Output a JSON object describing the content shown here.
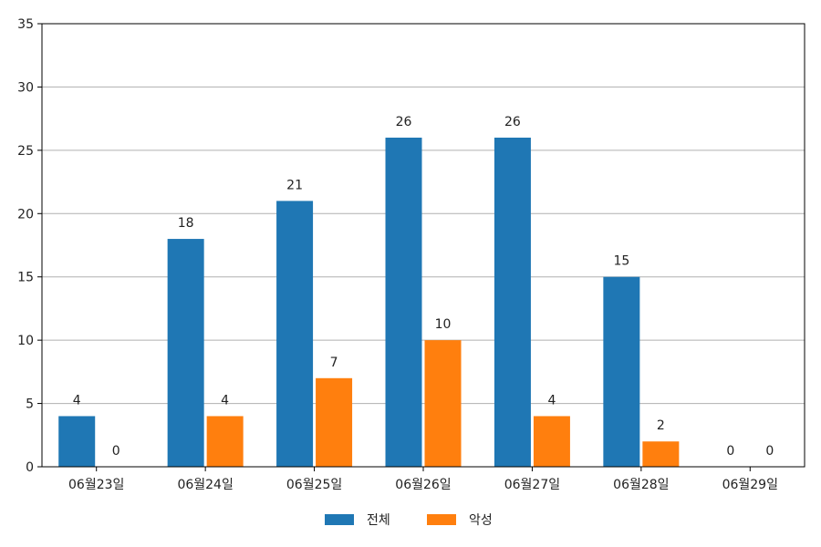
{
  "chart_data": {
    "type": "bar",
    "categories": [
      "06월23일",
      "06월24일",
      "06월25일",
      "06월26일",
      "06월27일",
      "06월28일",
      "06월29일"
    ],
    "series": [
      {
        "name": "전체",
        "values": [
          4,
          18,
          21,
          26,
          26,
          15,
          0
        ],
        "color": "#1f77b4"
      },
      {
        "name": "악성",
        "values": [
          0,
          4,
          7,
          10,
          4,
          2,
          0
        ],
        "color": "#ff7f0e"
      }
    ],
    "ylim": [
      0,
      35
    ],
    "yticks": [
      0,
      5,
      10,
      15,
      20,
      25,
      30,
      35
    ],
    "grid": "horizontal",
    "legend": "bottom-center",
    "data_labels": true
  }
}
